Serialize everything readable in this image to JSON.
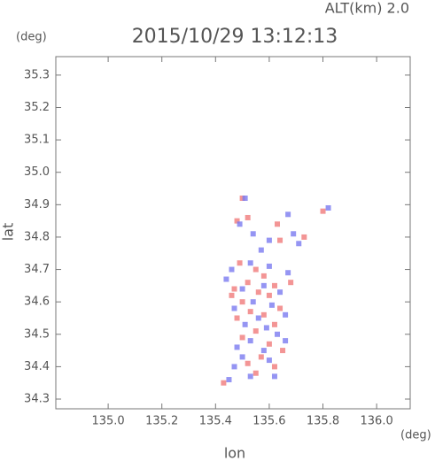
{
  "chart_data": {
    "type": "scatter",
    "title": "2015/10/29 13:12:13",
    "subtitle": "ALT(km) 2.0",
    "x_label": "lon",
    "y_label": "lat",
    "x_unit": "(deg)",
    "y_unit": "(deg)",
    "xlim": [
      134.805,
      136.125
    ],
    "ylim": [
      34.27,
      35.357
    ],
    "xticks": [
      {
        "value": 135.0,
        "label": "135.0"
      },
      {
        "value": 135.2,
        "label": "135.2"
      },
      {
        "value": 135.4,
        "label": "135.4"
      },
      {
        "value": 135.6,
        "label": "135.6"
      },
      {
        "value": 135.8,
        "label": "135.8"
      },
      {
        "value": 136.0,
        "label": "136.0"
      }
    ],
    "yticks": [
      34.3,
      34.4,
      34.5,
      34.6,
      34.7,
      34.8,
      34.9,
      {
        "value": 35.0,
        "label": "35.0"
      },
      35.1,
      35.2,
      35.3
    ],
    "series": [
      {
        "color": "#f07a7a",
        "x": [
          135.5,
          135.52,
          135.48,
          135.63,
          135.8,
          135.73,
          135.64,
          135.49,
          135.55,
          135.58,
          135.52,
          135.62,
          135.47,
          135.56,
          135.6,
          135.5,
          135.64,
          135.53,
          135.58,
          135.48,
          135.62,
          135.55,
          135.5,
          135.6,
          135.65,
          135.57,
          135.52,
          135.62,
          135.55,
          135.43,
          135.68,
          135.46
        ],
        "values": [
          34.92,
          34.86,
          34.85,
          34.84,
          34.88,
          34.8,
          34.79,
          34.72,
          34.7,
          34.68,
          34.66,
          34.65,
          34.64,
          34.63,
          34.62,
          34.6,
          34.58,
          34.57,
          34.56,
          34.55,
          34.53,
          34.51,
          34.49,
          34.47,
          34.45,
          34.43,
          34.41,
          34.4,
          34.38,
          34.35,
          34.66,
          34.62
        ]
      },
      {
        "color": "#7a7af0",
        "x": [
          135.51,
          135.49,
          135.54,
          135.67,
          135.69,
          135.6,
          135.57,
          135.46,
          135.53,
          135.6,
          135.67,
          135.44,
          135.5,
          135.58,
          135.64,
          135.54,
          135.61,
          135.47,
          135.56,
          135.66,
          135.51,
          135.59,
          135.53,
          135.63,
          135.48,
          135.58,
          135.66,
          135.5,
          135.6,
          135.47,
          135.53,
          135.45,
          135.62,
          135.82,
          135.71
        ],
        "values": [
          34.92,
          34.84,
          34.81,
          34.87,
          34.81,
          34.79,
          34.76,
          34.7,
          34.72,
          34.71,
          34.69,
          34.67,
          34.64,
          34.65,
          34.63,
          34.6,
          34.59,
          34.58,
          34.55,
          34.56,
          34.53,
          34.52,
          34.48,
          34.5,
          34.46,
          34.45,
          34.48,
          34.43,
          34.42,
          34.4,
          34.37,
          34.36,
          34.37,
          34.89,
          34.78
        ]
      }
    ]
  }
}
